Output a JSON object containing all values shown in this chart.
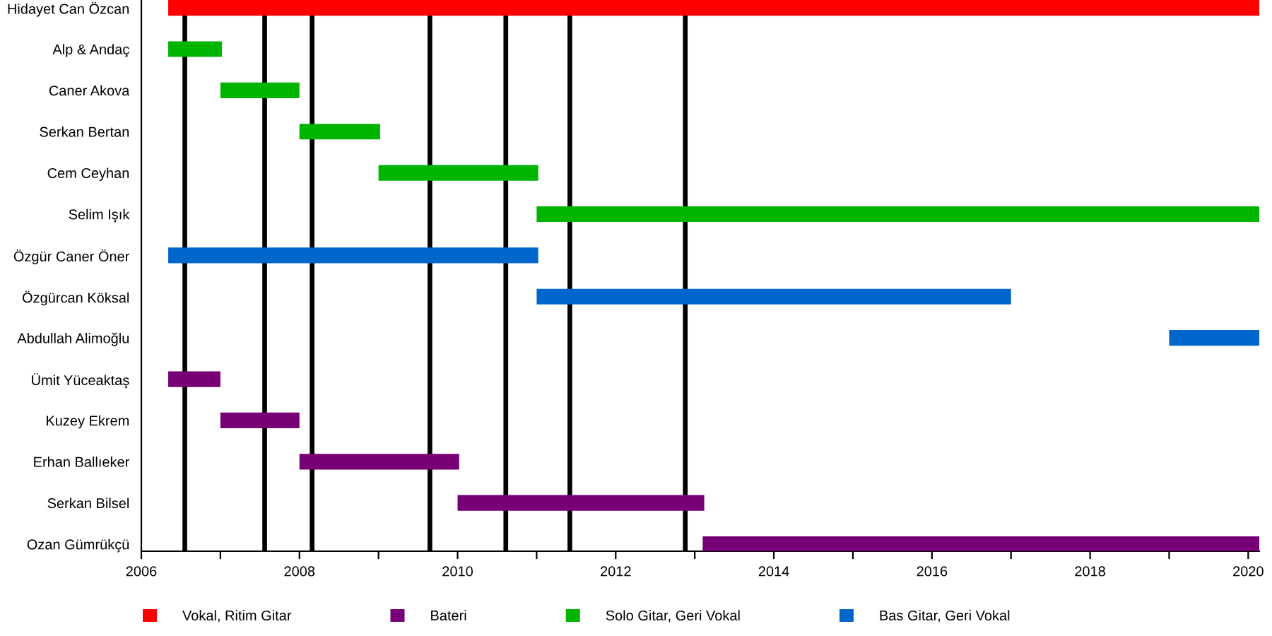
{
  "chart_data": {
    "type": "bar",
    "orientation": "horizontal",
    "categories": [
      "Hidayet Can Özcan",
      "Alp & Andaç",
      "Caner Akova",
      "Serkan Bertan",
      "Cem Ceyhan",
      "Selim Işık",
      "Özgür Caner Öner",
      "Özgürcan Köksal",
      "Abdullah Alimoğlu",
      "Ümit Yüceaktaş",
      "Kuzey Ekrem",
      "Erhan Ballıeker",
      "Serkan Bilsel",
      "Ozan Gümrükçü"
    ],
    "series": [
      {
        "name": "Vokal, Ritim Gitar",
        "color": "#ff0000",
        "base": [
          2006.34,
          null,
          null,
          null,
          null,
          null,
          null,
          null,
          null,
          null,
          null,
          null,
          null,
          null
        ],
        "values": [
          13.8,
          null,
          null,
          null,
          null,
          null,
          null,
          null,
          null,
          null,
          null,
          null,
          null,
          null
        ]
      },
      {
        "name": "Bateri",
        "color": "#770077",
        "base": [
          null,
          null,
          null,
          null,
          null,
          null,
          null,
          null,
          null,
          2006.34,
          2007.0,
          2008.0,
          2010.0,
          2013.1
        ],
        "values": [
          null,
          null,
          null,
          null,
          null,
          null,
          null,
          null,
          null,
          0.66,
          1.0,
          2.02,
          3.12,
          7.04
        ]
      },
      {
        "name": "Solo Gitar, Geri Vokal",
        "color": "#00b400",
        "base": [
          null,
          2006.34,
          2007.0,
          2008.0,
          2009.0,
          2011.0,
          null,
          null,
          null,
          null,
          null,
          null,
          null,
          null
        ],
        "values": [
          null,
          0.68,
          1.0,
          1.02,
          2.02,
          9.14,
          null,
          null,
          null,
          null,
          null,
          null,
          null,
          null
        ]
      },
      {
        "name": "Bas Gitar, Geri Vokal",
        "color": "#0066cc",
        "base": [
          null,
          null,
          null,
          null,
          null,
          null,
          2006.34,
          2011.0,
          2019.0,
          null,
          null,
          null,
          null,
          null
        ],
        "values": [
          null,
          null,
          null,
          null,
          null,
          null,
          4.68,
          6.0,
          1.14,
          null,
          null,
          null,
          null,
          null
        ]
      }
    ],
    "xlim": [
      2006,
      2020.14
    ],
    "xticks": [
      2006,
      {
        "value": 2007,
        "label": null
      },
      2008,
      {
        "value": 2009,
        "label": null
      },
      2010,
      {
        "value": 2011,
        "label": null
      },
      2012,
      {
        "value": 2013,
        "label": null
      },
      2014,
      {
        "value": 2015,
        "label": null
      },
      2016,
      {
        "value": 2017,
        "label": null
      },
      2018,
      {
        "value": 2019,
        "label": null
      },
      2020
    ],
    "ref_lines": [
      {
        "axis": "x",
        "value": 2006.55,
        "color": "#000000"
      },
      {
        "axis": "x",
        "value": 2007.56,
        "color": "#000000"
      },
      {
        "axis": "x",
        "value": 2008.16,
        "color": "#000000"
      },
      {
        "axis": "x",
        "value": 2009.65,
        "color": "#000000"
      },
      {
        "axis": "x",
        "value": 2010.61,
        "color": "#000000"
      },
      {
        "axis": "x",
        "value": 2011.42,
        "color": "#000000"
      },
      {
        "axis": "x",
        "value": 2012.88,
        "color": "#000000"
      }
    ],
    "legend": "bottom"
  }
}
